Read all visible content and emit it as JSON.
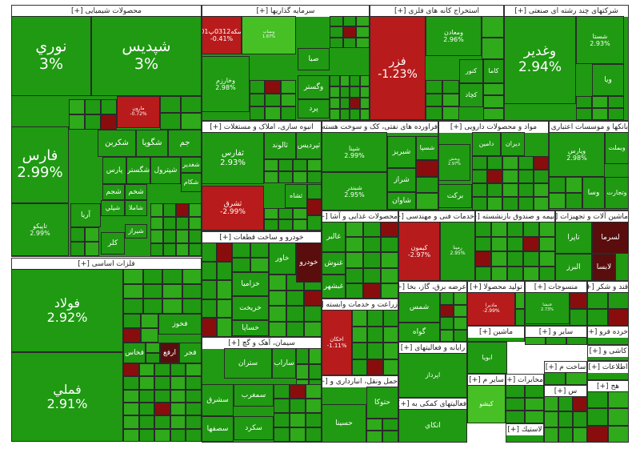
{
  "colors": {
    "up_strong": "#1f9a12",
    "up": "#2eaa1a",
    "up_light": "#46c024",
    "down_strong": "#8a0d0d",
    "down": "#b81b1b",
    "down_light": "#d63030",
    "dark_red": "#5a0d0d"
  },
  "toggle_label": "[+]",
  "chart_data": {
    "type": "treemap",
    "sectors": [
      {
        "name": "محصولات شیمیایی",
        "children": [
          {
            "name": "نوري",
            "change_label": "3%",
            "trend": "up"
          },
          {
            "name": "شپديس",
            "change_label": "3%",
            "trend": "up"
          },
          {
            "name": "فارس",
            "change_label": "2.99%",
            "trend": "up"
          },
          {
            "name": "تاپيكو",
            "change_label": "2.99%",
            "trend": "up"
          },
          {
            "name": "شگويا",
            "change_label": "",
            "trend": "up"
          },
          {
            "name": "شكربن",
            "change_label": "",
            "trend": "up"
          },
          {
            "name": "جم",
            "change_label": "",
            "trend": "up"
          },
          {
            "name": "شگستر",
            "change_label": "",
            "trend": "up"
          },
          {
            "name": "پارس",
            "change_label": "",
            "trend": "up"
          },
          {
            "name": "شجم",
            "change_label": "",
            "trend": "up"
          },
          {
            "name": "شخم",
            "change_label": "",
            "trend": "up"
          },
          {
            "name": "شپترول",
            "change_label": "",
            "trend": "up"
          },
          {
            "name": "شغدير",
            "change_label": "",
            "trend": "up"
          },
          {
            "name": "شكام",
            "change_label": "",
            "trend": "up"
          },
          {
            "name": "آريا",
            "change_label": "",
            "trend": "up"
          },
          {
            "name": "شپلي",
            "change_label": "",
            "trend": "up"
          },
          {
            "name": "شاملا",
            "change_label": "",
            "trend": "up"
          },
          {
            "name": "شيراز",
            "change_label": "",
            "trend": "up"
          },
          {
            "name": "كلر",
            "change_label": "",
            "trend": "up"
          },
          {
            "name": "مارون",
            "change_label": "-0.72%",
            "trend": "down"
          }
        ]
      },
      {
        "name": "فلزات اساسی",
        "children": [
          {
            "name": "فولاد",
            "change_label": "2.92%",
            "trend": "up"
          },
          {
            "name": "فملي",
            "change_label": "2.91%",
            "trend": "up"
          },
          {
            "name": "فخوز",
            "change_label": "",
            "trend": "up"
          },
          {
            "name": "فجر",
            "change_label": "",
            "trend": "up"
          },
          {
            "name": "ارفع",
            "change_label": "",
            "trend": "down"
          },
          {
            "name": "فخاس",
            "change_label": "",
            "trend": "up"
          }
        ]
      },
      {
        "name": "سرمایه گذاریها",
        "children": [
          {
            "name": "سكه0312پ01",
            "change_label": "-0.41%",
            "trend": "down"
          },
          {
            "name": "وبساپ",
            "change_label": "1.67%",
            "trend": "up"
          },
          {
            "name": "وخارزم",
            "change_label": "2.98%",
            "trend": "up"
          },
          {
            "name": "صبا",
            "change_label": "",
            "trend": "up"
          },
          {
            "name": "وگستر",
            "change_label": "",
            "trend": "up"
          },
          {
            "name": "پرد",
            "change_label": "",
            "trend": "up"
          }
        ]
      },
      {
        "name": "استخراج کانه های فلزی",
        "children": [
          {
            "name": "فزر",
            "change_label": "-1.23%",
            "trend": "down"
          },
          {
            "name": "ومعادن",
            "change_label": "2.96%",
            "trend": "up"
          },
          {
            "name": "كنور",
            "change_label": "",
            "trend": "up"
          },
          {
            "name": "كاما",
            "change_label": "",
            "trend": "up"
          },
          {
            "name": "كچاد",
            "change_label": "",
            "trend": "up"
          }
        ]
      },
      {
        "name": "شرکتهای چند رشته ای صنعتی",
        "children": [
          {
            "name": "وغدير",
            "change_label": "2.94%",
            "trend": "up"
          },
          {
            "name": "شستا",
            "change_label": "2.93%",
            "trend": "up"
          },
          {
            "name": "ويا",
            "change_label": "",
            "trend": "up"
          }
        ]
      },
      {
        "name": "انبوه سازی، املاک و مستغلات",
        "children": [
          {
            "name": "ثفارس",
            "change_label": "2.93%",
            "trend": "up"
          },
          {
            "name": "ثشرق",
            "change_label": "-2.99%",
            "trend": "down"
          },
          {
            "name": "ثالوند",
            "change_label": "",
            "trend": "up"
          },
          {
            "name": "ثپردیس",
            "change_label": "",
            "trend": "up"
          },
          {
            "name": "ثشاه",
            "change_label": "",
            "trend": "up"
          }
        ]
      },
      {
        "name": "فراورده های نفتی، کک و سوخت هسته ای",
        "children": [
          {
            "name": "شپنا",
            "change_label": "2.99%",
            "trend": "up"
          },
          {
            "name": "شبندر",
            "change_label": "2.95%",
            "trend": "up"
          },
          {
            "name": "شسپا",
            "change_label": "",
            "trend": "up"
          },
          {
            "name": "شبريز",
            "change_label": "",
            "trend": "up"
          },
          {
            "name": "شراز",
            "change_label": "",
            "trend": "up"
          },
          {
            "name": "شاوان",
            "change_label": "",
            "trend": "up"
          }
        ]
      },
      {
        "name": "مواد و محصولات دارویی",
        "children": [
          {
            "name": "دامين",
            "change_label": "",
            "trend": "up"
          },
          {
            "name": "ديران",
            "change_label": "",
            "trend": "up"
          },
          {
            "name": "بركت",
            "change_label": "",
            "trend": "up"
          },
          {
            "name": "وپخش",
            "change_label": "2.97%",
            "trend": "up"
          }
        ]
      },
      {
        "name": "بانکها و موسسات اعتباری",
        "children": [
          {
            "name": "وپارس",
            "change_label": "2.98%",
            "trend": "up"
          },
          {
            "name": "وبملت",
            "change_label": "",
            "trend": "up"
          },
          {
            "name": "وسا",
            "change_label": "",
            "trend": "up"
          },
          {
            "name": "وتجارت",
            "change_label": "",
            "trend": "up"
          }
        ]
      },
      {
        "name": "خودرو و ساخت قطعات",
        "children": [
          {
            "name": "خودرو",
            "change_label": "",
            "trend": "down"
          },
          {
            "name": "خاور",
            "change_label": "",
            "trend": "up"
          },
          {
            "name": "خزامیا",
            "change_label": "",
            "trend": "up"
          },
          {
            "name": "خريخت",
            "change_label": "",
            "trend": "up"
          },
          {
            "name": "خساپا",
            "change_label": "",
            "trend": "up"
          }
        ]
      },
      {
        "name": "محصولات غذایی و آشا",
        "children": [
          {
            "name": "غالبر",
            "change_label": "",
            "trend": "up"
          },
          {
            "name": "غنوش",
            "change_label": "",
            "trend": "up"
          },
          {
            "name": "غبشهر",
            "change_label": "",
            "trend": "up"
          }
        ]
      },
      {
        "name": "خدمات فنی و مهندسی",
        "children": [
          {
            "name": "كيمون",
            "change_label": "-2.97%",
            "trend": "down"
          },
          {
            "name": "رمپنا",
            "change_label": "2.95%",
            "trend": "up"
          }
        ]
      },
      {
        "name": "بیمه و صندوق بازنشسته",
        "children": []
      },
      {
        "name": "ماشین آلات و تجهیزات",
        "children": [
          {
            "name": "تاپرا",
            "change_label": "",
            "trend": "up"
          },
          {
            "name": "لسرما",
            "change_label": "",
            "trend": "down"
          },
          {
            "name": "لابسا",
            "change_label": "",
            "trend": "down"
          },
          {
            "name": "البرز",
            "change_label": "",
            "trend": "up"
          }
        ]
      },
      {
        "name": "زراعت و خدمات وابسته",
        "children": [
          {
            "name": "اخكان",
            "change_label": "-1.11%",
            "trend": "down"
          }
        ]
      },
      {
        "name": "عرضه برق، گاز، بخا",
        "children": [
          {
            "name": "شمس",
            "change_label": "",
            "trend": "up"
          },
          {
            "name": "گواه",
            "change_label": "",
            "trend": "up"
          }
        ]
      },
      {
        "name": "تولید محصولا",
        "children": [
          {
            "name": "ماديرا",
            "change_label": "-2.99%",
            "trend": "down"
          }
        ]
      },
      {
        "name": "منسوجات",
        "change_label": "",
        "children": [
          {
            "name": "قنیشا",
            "change_label": "2.73%",
            "trend": "up"
          }
        ]
      },
      {
        "name": "قند و شکر",
        "children": []
      },
      {
        "name": "ماشین",
        "children": []
      },
      {
        "name": "سایر و",
        "children": []
      },
      {
        "name": "خرده فرو",
        "children": []
      },
      {
        "name": "کاشی و",
        "children": []
      },
      {
        "name": "سیمان، آهک و گچ",
        "children": [
          {
            "name": "ستران",
            "change_label": "",
            "trend": "up"
          },
          {
            "name": "ساراب",
            "change_label": "",
            "trend": "up"
          },
          {
            "name": "سشرق",
            "change_label": "",
            "trend": "up"
          },
          {
            "name": "سمغرب",
            "change_label": "",
            "trend": "up"
          },
          {
            "name": "سكرد",
            "change_label": "",
            "trend": "up"
          },
          {
            "name": "سصفها",
            "change_label": "",
            "trend": "up"
          }
        ]
      },
      {
        "name": "رایانه و فعالیتهای",
        "children": [
          {
            "name": "اپرداز",
            "change_label": "",
            "trend": "up"
          }
        ]
      },
      {
        "name": "",
        "children": [
          {
            "name": "ابويا",
            "change_label": "",
            "trend": "up"
          }
        ]
      },
      {
        "name": "اطلاعات",
        "children": []
      },
      {
        "name": "ساخت م",
        "children": []
      },
      {
        "name": "حمل ونقل، انبارداری و",
        "children": [
          {
            "name": "حسينا",
            "change_label": "",
            "trend": "up"
          },
          {
            "name": "حتوكا",
            "change_label": "",
            "trend": "up"
          }
        ]
      },
      {
        "name": "فعالیتهای کمکی به",
        "children": [
          {
            "name": "اتكاي",
            "change_label": "",
            "trend": "up"
          }
        ]
      },
      {
        "name": "سایر م",
        "children": [
          {
            "name": "كيشو",
            "change_label": "",
            "trend": "up"
          }
        ]
      },
      {
        "name": "مخابرات",
        "children": []
      },
      {
        "name": "لاستیك",
        "children": []
      },
      {
        "name": "س",
        "children": []
      },
      {
        "name": "هج",
        "children": []
      }
    ]
  }
}
